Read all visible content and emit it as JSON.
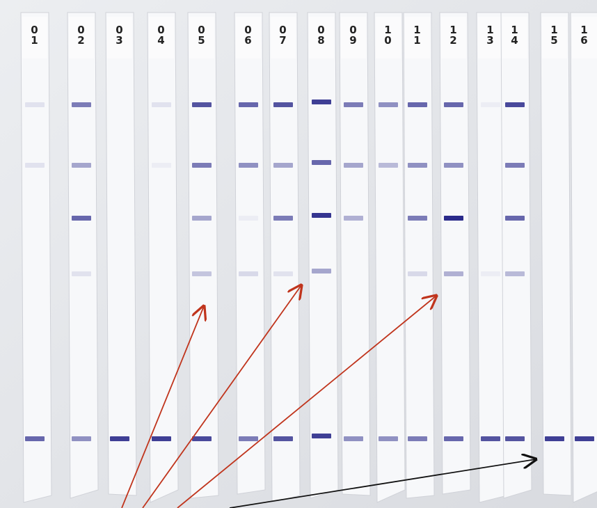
{
  "strips": [
    {
      "label": "01"
    },
    {
      "label": "02"
    },
    {
      "label": "03"
    },
    {
      "label": "04"
    },
    {
      "label": "05"
    },
    {
      "label": "06"
    },
    {
      "label": "07"
    },
    {
      "label": "08"
    },
    {
      "label": "09"
    },
    {
      "label": "10"
    },
    {
      "label": "11"
    },
    {
      "label": "12"
    },
    {
      "label": "13"
    },
    {
      "label": "14"
    },
    {
      "label": "15"
    },
    {
      "label": "16"
    }
  ]
}
